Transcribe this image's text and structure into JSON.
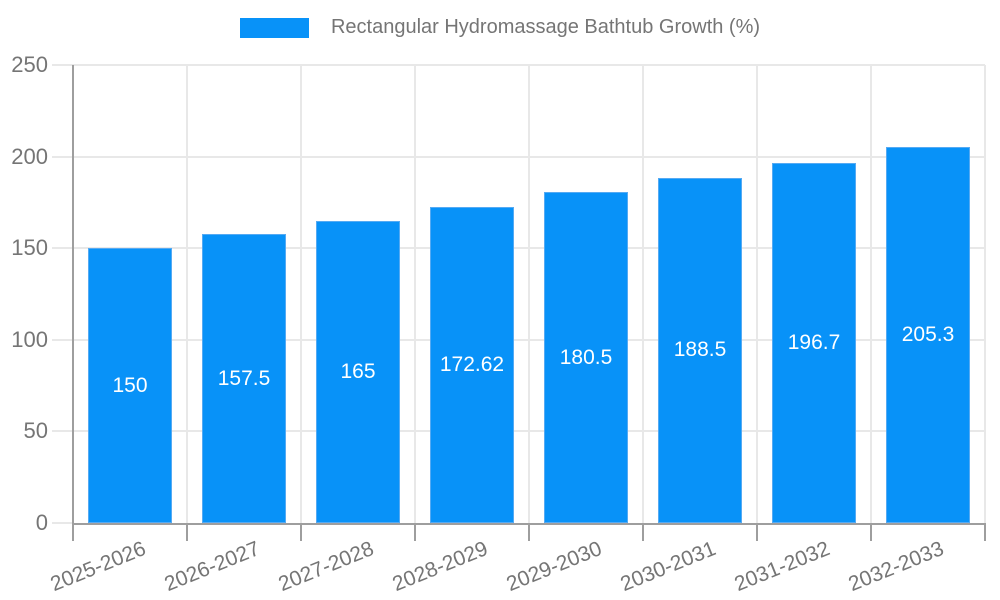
{
  "legend": {
    "title": "Rectangular Hydromassage Bathtub Growth (%)"
  },
  "colors": {
    "bar_fill": "#0892f8",
    "bar_border": "#55aaf3",
    "axis_line": "#9e9e9e",
    "gridline": "#e8e8e8",
    "tick_label": "#757575",
    "value_label": "#ffffff",
    "background": "#ffffff"
  },
  "chart_data": {
    "type": "bar",
    "title": "Rectangular Hydromassage Bathtub Growth (%)",
    "categories": [
      "2025-2026",
      "2026-2027",
      "2027-2028",
      "2028-2029",
      "2029-2030",
      "2030-2031",
      "2031-2032",
      "2032-2033"
    ],
    "values": [
      150,
      157.5,
      165,
      172.62,
      180.5,
      188.5,
      196.7,
      205.3
    ],
    "value_labels": [
      "150",
      "157.5",
      "165",
      "172.62",
      "180.5",
      "188.5",
      "196.7",
      "205.3"
    ],
    "xlabel": "",
    "ylabel": "",
    "ylim": [
      0,
      250
    ],
    "yticks": [
      0,
      50,
      100,
      150,
      200,
      250
    ],
    "grid": true,
    "legend_position": "top-center",
    "bar_label_position": "middle",
    "series_color": "#0892f8"
  }
}
